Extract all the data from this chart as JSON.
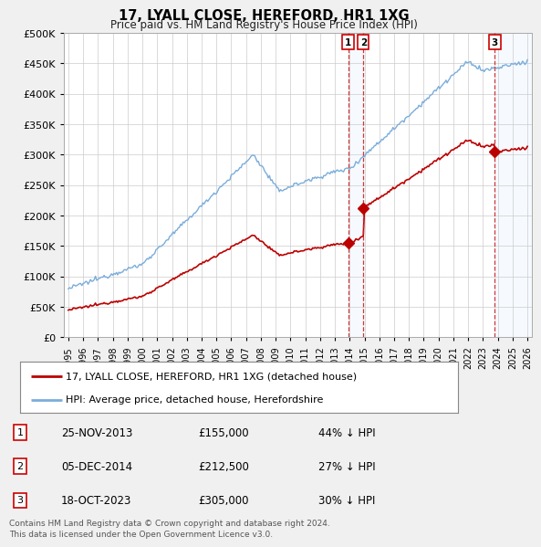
{
  "title": "17, LYALL CLOSE, HEREFORD, HR1 1XG",
  "subtitle": "Price paid vs. HM Land Registry's House Price Index (HPI)",
  "hpi_label": "HPI: Average price, detached house, Herefordshire",
  "property_label": "17, LYALL CLOSE, HEREFORD, HR1 1XG (detached house)",
  "hpi_color": "#7aaddb",
  "property_color": "#bb0000",
  "vline_color": "#cc2222",
  "marker_box_color": "#cc0000",
  "shade_color": "#ddeeff",
  "footer": "Contains HM Land Registry data © Crown copyright and database right 2024.\nThis data is licensed under the Open Government Licence v3.0.",
  "transactions": [
    {
      "num": 1,
      "date": "25-NOV-2013",
      "price": 155000,
      "pct": "44%",
      "direction": "↓",
      "x_year": 2013.9
    },
    {
      "num": 2,
      "date": "05-DEC-2014",
      "price": 212500,
      "pct": "27%",
      "direction": "↓",
      "x_year": 2014.92
    },
    {
      "num": 3,
      "date": "18-OCT-2023",
      "price": 305000,
      "pct": "30%",
      "direction": "↓",
      "x_year": 2023.8
    }
  ],
  "ylim": [
    0,
    500000
  ],
  "yticks": [
    0,
    50000,
    100000,
    150000,
    200000,
    250000,
    300000,
    350000,
    400000,
    450000,
    500000
  ],
  "xlim": [
    1994.7,
    2026.3
  ],
  "background_color": "#f0f0f0",
  "plot_background": "#ffffff",
  "grid_color": "#cccccc"
}
